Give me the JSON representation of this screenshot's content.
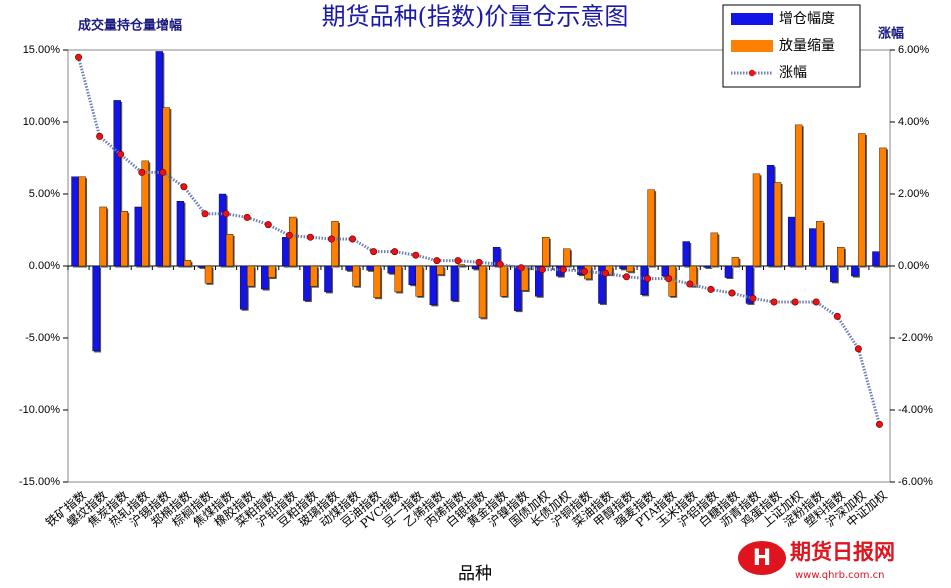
{
  "chart_data": {
    "type": "bar",
    "title": "期货品种(指数)价量仓示意图",
    "y_label": "成交量持仓量增幅",
    "y2_label": "涨幅",
    "x_label": "品种",
    "watermark": "期货日报网",
    "watermark_url": "www.qhrb.com.cn",
    "categories": [
      "铁矿指数",
      "螺纹指数",
      "焦炭指数",
      "热轧指数",
      "沪锡指数",
      "郑棉指数",
      "棕榈指数",
      "焦煤指数",
      "橡胶指数",
      "菜粕指数",
      "沪铅指数",
      "豆粕指数",
      "玻璃指数",
      "动煤指数",
      "豆油指数",
      "PVC指数",
      "豆一指数",
      "乙烯指数",
      "丙烯指数",
      "白银指数",
      "黄金指数",
      "沪镍指数",
      "国债加权",
      "长债加权",
      "沪铜指数",
      "菜油指数",
      "甲醇指数",
      "强麦指数",
      "PTA指数",
      "玉米指数",
      "沪铝指数",
      "白糖指数",
      "沥青指数",
      "鸡蛋指数",
      "上证加权",
      "淀粉指数",
      "塑料指数",
      "沪深加权",
      "中证加权"
    ],
    "series": [
      {
        "name": "增仓幅度",
        "color": "#1414e6",
        "values": [
          6.2,
          -5.9,
          11.5,
          4.1,
          14.9,
          4.5,
          -0.1,
          5.0,
          -3.0,
          -1.6,
          2.0,
          -2.4,
          -1.8,
          -0.3,
          -0.3,
          -0.5,
          -1.3,
          -2.7,
          -2.4,
          -0.2,
          1.3,
          -3.1,
          -2.1,
          -0.7,
          -0.6,
          -2.6,
          -0.2,
          -2.0,
          -0.7,
          1.7,
          -0.1,
          -0.8,
          -2.6,
          7.0,
          3.4,
          2.6,
          -1.1,
          -0.7,
          1.0
        ]
      },
      {
        "name": "放量缩量",
        "color": "#ff8000",
        "values": [
          6.2,
          4.1,
          3.8,
          7.3,
          11.0,
          0.4,
          -1.2,
          2.2,
          -1.4,
          -0.8,
          3.4,
          -1.4,
          3.1,
          -1.4,
          -2.2,
          -1.8,
          -2.1,
          -0.6,
          0.1,
          -3.6,
          -2.1,
          -1.7,
          2.0,
          1.2,
          -0.9,
          -0.6,
          -0.4,
          5.3,
          -2.1,
          -1.4,
          2.3,
          0.6,
          6.4,
          5.8,
          9.8,
          3.1,
          1.3,
          9.2,
          8.2
        ]
      },
      {
        "name": "涨幅",
        "color": "#6a7fb5",
        "marker_color": "#ee1111",
        "type": "line",
        "axis": "y2",
        "values": [
          5.8,
          3.6,
          3.1,
          2.6,
          2.6,
          2.2,
          1.45,
          1.45,
          1.35,
          1.15,
          0.85,
          0.8,
          0.75,
          0.75,
          0.4,
          0.4,
          0.3,
          0.15,
          0.15,
          0.1,
          0.05,
          -0.05,
          -0.1,
          -0.1,
          -0.15,
          -0.2,
          -0.3,
          -0.35,
          -0.35,
          -0.5,
          -0.65,
          -0.75,
          -0.9,
          -1.0,
          -1.0,
          -1.0,
          -1.4,
          -2.3,
          -4.4
        ]
      }
    ],
    "ylim": [
      -15,
      15
    ],
    "yticks": [
      {
        "value": -15,
        "label": "-15.00%"
      },
      {
        "value": -10,
        "label": "-10.00%"
      },
      {
        "value": -5,
        "label": "-5.00%"
      },
      {
        "value": 0,
        "label": "0.00%"
      },
      {
        "value": 5,
        "label": "5.00%"
      },
      {
        "value": 10,
        "label": "10.00%"
      },
      {
        "value": 15,
        "label": "15.00%"
      }
    ],
    "y2lim": [
      -6,
      6
    ],
    "y2ticks": [
      {
        "value": -6,
        "label": "-6.00%"
      },
      {
        "value": -4,
        "label": "-4.00%"
      },
      {
        "value": -2,
        "label": "-2.00%"
      },
      {
        "value": 0,
        "label": "0.00%"
      },
      {
        "value": 2,
        "label": "2.00%"
      },
      {
        "value": 4,
        "label": "4.00%"
      },
      {
        "value": 6,
        "label": "6.00%"
      }
    ],
    "legend": "top-right"
  }
}
